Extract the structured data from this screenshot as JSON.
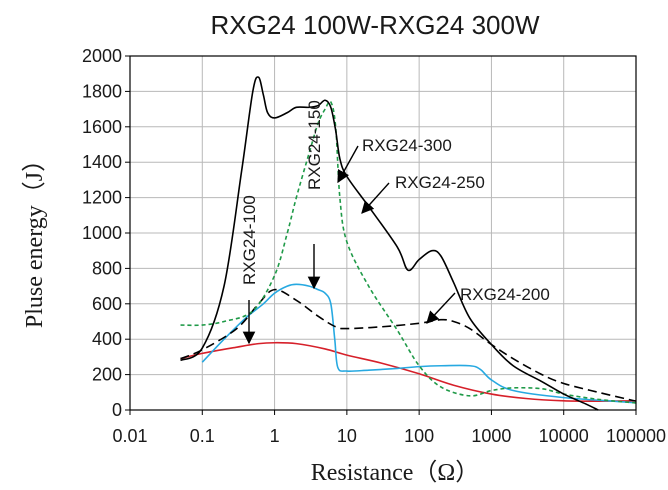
{
  "chart_data": {
    "type": "line",
    "title": "RXG24 100W-RXG24 300W",
    "xlabel": "Resistance（Ω）",
    "ylabel": "Pluse energy（J）",
    "x_scale": "log",
    "xlim": [
      0.01,
      100000
    ],
    "ylim": [
      0,
      2000
    ],
    "x_ticks": [
      0.01,
      0.1,
      1,
      10,
      100,
      1000,
      10000,
      100000
    ],
    "x_tick_labels": [
      "0.01",
      "0.1",
      "1",
      "10",
      "100",
      "1000",
      "10000",
      "100000"
    ],
    "y_ticks": [
      0,
      200,
      400,
      600,
      800,
      1000,
      1200,
      1400,
      1600,
      1800,
      2000
    ],
    "y_tick_labels": [
      "0",
      "200",
      "400",
      "600",
      "800",
      "1000",
      "1200",
      "1400",
      "1600",
      "1800",
      "2000"
    ],
    "grid": true,
    "series": [
      {
        "name": "RXG24-100",
        "color": "#d6202a",
        "dash": "solid",
        "x": [
          0.05,
          0.1,
          0.3,
          0.6,
          1,
          2,
          5,
          10,
          30,
          100,
          300,
          1000,
          3000,
          10000,
          30000,
          100000,
          200000
        ],
        "y": [
          290,
          320,
          355,
          375,
          380,
          375,
          345,
          310,
          265,
          205,
          140,
          90,
          65,
          52,
          50,
          52,
          55
        ]
      },
      {
        "name": "RXG24-150",
        "color": "#27a9e1",
        "dash": "solid",
        "x": [
          0.1,
          0.2,
          0.4,
          0.7,
          1,
          1.5,
          2,
          3,
          4,
          5,
          6,
          6.8,
          7.5,
          10,
          20,
          50,
          100,
          200,
          500,
          700,
          1000,
          2000,
          10000,
          100000,
          200000
        ],
        "y": [
          270,
          400,
          520,
          600,
          660,
          700,
          710,
          700,
          680,
          660,
          600,
          400,
          240,
          220,
          225,
          235,
          245,
          250,
          250,
          230,
          170,
          110,
          70,
          40,
          15
        ]
      },
      {
        "name": "RXG24-200",
        "color": "#000000",
        "dash": "longdash",
        "x": [
          0.05,
          0.1,
          0.3,
          0.6,
          1,
          2,
          4,
          7,
          10,
          30,
          100,
          200,
          300,
          500,
          1000,
          2000,
          5000,
          10000,
          30000,
          100000,
          200000
        ],
        "y": [
          290,
          340,
          460,
          600,
          680,
          620,
          530,
          470,
          460,
          470,
          490,
          510,
          500,
          460,
          370,
          290,
          200,
          150,
          100,
          50,
          20
        ]
      },
      {
        "name": "RXG24-250",
        "color": "#1f9a48",
        "dash": "dashed",
        "x": [
          0.05,
          0.1,
          0.2,
          0.5,
          1,
          1.5,
          2,
          3,
          4,
          5,
          6,
          7,
          8,
          10,
          20,
          50,
          100,
          200,
          500,
          1000,
          2000,
          5000,
          10000,
          30000,
          100000
        ],
        "y": [
          480,
          480,
          500,
          560,
          760,
          1000,
          1200,
          1450,
          1620,
          1700,
          1740,
          1600,
          1200,
          950,
          700,
          450,
          250,
          130,
          80,
          110,
          125,
          120,
          90,
          60,
          40
        ]
      },
      {
        "name": "RXG24-300",
        "color": "#000000",
        "dash": "solid",
        "x": [
          0.05,
          0.1,
          0.2,
          0.35,
          0.5,
          0.6,
          0.7,
          0.8,
          1,
          1.5,
          2,
          3,
          4,
          5,
          6,
          7,
          8,
          10,
          20,
          50,
          70,
          100,
          150,
          200,
          300,
          500,
          1000,
          2000,
          5000,
          10000,
          20000,
          30000
        ],
        "y": [
          280,
          350,
          700,
          1350,
          1800,
          1880,
          1780,
          1680,
          1650,
          1680,
          1710,
          1710,
          1720,
          1750,
          1710,
          1580,
          1420,
          1320,
          1150,
          920,
          790,
          850,
          900,
          870,
          720,
          520,
          370,
          250,
          160,
          90,
          35,
          0
        ]
      }
    ],
    "annotations": [
      {
        "text": "RXG24-100",
        "series": "RXG24-100",
        "orientation": "vertical"
      },
      {
        "text": "RXG24-150",
        "series": "RXG24-150",
        "orientation": "vertical"
      },
      {
        "text": "RXG24-300",
        "series": "RXG24-300",
        "orientation": "horizontal"
      },
      {
        "text": "RXG24-250",
        "series": "RXG24-250",
        "orientation": "horizontal"
      },
      {
        "text": "RXG24-200",
        "series": "RXG24-200",
        "orientation": "horizontal"
      }
    ]
  }
}
